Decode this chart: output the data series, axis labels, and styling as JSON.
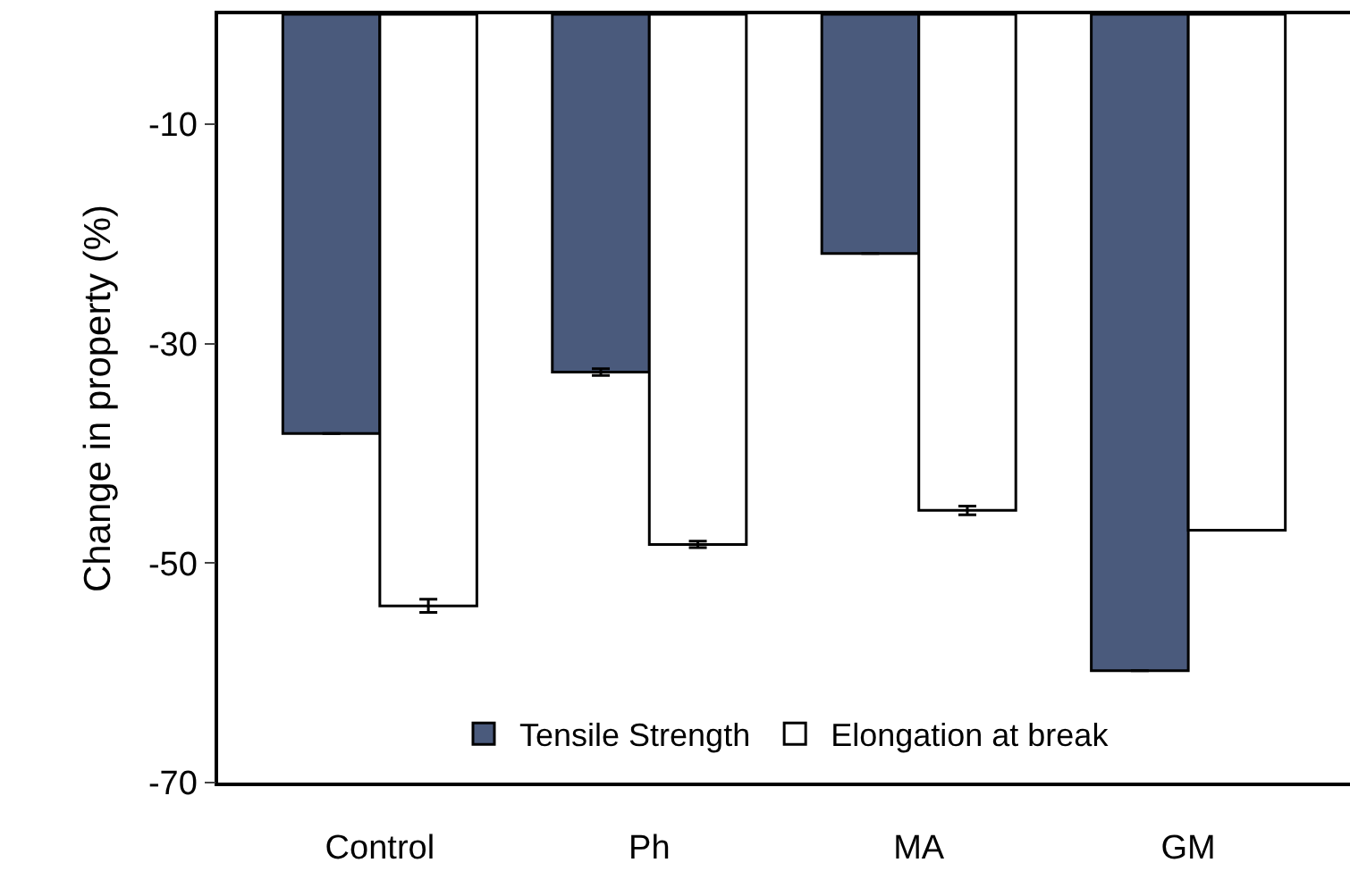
{
  "chart_data": {
    "type": "bar",
    "ylabel": "Change in property (%)",
    "categories": [
      "Control",
      "Ph",
      "MA",
      "GM"
    ],
    "series": [
      {
        "name": "Tensile Strength",
        "color": "#4a5a7c",
        "values": [
          -38.2,
          -32.6,
          -21.8,
          -59.8
        ],
        "errors": [
          null,
          0.3,
          null,
          null
        ]
      },
      {
        "name": "Elongation at break",
        "color": "#ffffff",
        "values": [
          -53.9,
          -48.3,
          -45.2,
          -47.0
        ],
        "errors": [
          0.6,
          0.3,
          0.4,
          null
        ]
      }
    ],
    "ylim": [
      -70,
      0
    ],
    "yticks": [
      -10,
      -30,
      -50,
      -70
    ],
    "legend": "bottom"
  }
}
